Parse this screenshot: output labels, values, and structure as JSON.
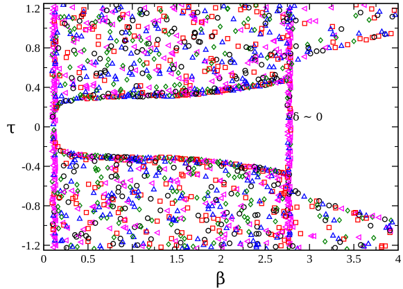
{
  "chart_data": {
    "type": "scatter",
    "title": "",
    "xlabel": "β",
    "ylabel": "τ",
    "xlim": [
      0,
      4
    ],
    "ylim": [
      -1.25,
      1.25
    ],
    "x_ticks": [
      0,
      0.5,
      1,
      1.5,
      2,
      2.5,
      3,
      3.5,
      4
    ],
    "x_tick_labels": [
      "0",
      "0.5",
      "1",
      "1.5",
      "2",
      "2.5",
      "3",
      "3.5",
      "4"
    ],
    "y_ticks": [
      -1.2,
      -0.8,
      -0.4,
      0,
      0.4,
      0.8,
      1.2
    ],
    "y_tick_labels": [
      "-1.2",
      "-0.8",
      "-0.4",
      "0",
      "0.4",
      "0.8",
      "1.2"
    ],
    "grid": false,
    "legend": "none",
    "annotation": {
      "text": "δ ~ 0",
      "x": 2.98,
      "y": 0.1
    },
    "series_style": [
      {
        "marker": "circle-open",
        "color": "#000000"
      },
      {
        "marker": "square-open",
        "color": "#ff0000"
      },
      {
        "marker": "diamond-open",
        "color": "#008000"
      },
      {
        "marker": "triangle-up-open",
        "color": "#0000ff"
      },
      {
        "marker": "triangle-left-open",
        "color": "#ff00ff"
      }
    ],
    "structure": {
      "vertical_bands": [
        {
          "x": 0.115,
          "y_min": -1.22,
          "y_max": -0.03,
          "dominant_color": "#ff00ff"
        },
        {
          "x": 0.115,
          "y_min": 0.03,
          "y_max": 1.22,
          "dominant_color": "#ff00ff"
        },
        {
          "x": 2.77,
          "y_min": -1.22,
          "y_max": 1.22,
          "dominant_color": "#ff00ff"
        }
      ],
      "boundary_curve": {
        "description": "inner edge of scattered region, mirrored for tau<0",
        "points": [
          [
            0.08,
            0.04
          ],
          [
            0.12,
            0.15
          ],
          [
            0.2,
            0.24
          ],
          [
            0.4,
            0.28
          ],
          [
            0.8,
            0.3
          ],
          [
            1.5,
            0.31
          ],
          [
            2.0,
            0.35
          ],
          [
            2.5,
            0.42
          ],
          [
            2.75,
            0.47
          ]
        ]
      },
      "right_region_edge": {
        "description": "lower edge of points for beta>2.77, mirrored",
        "points": [
          [
            2.78,
            0.62
          ],
          [
            3.0,
            0.72
          ],
          [
            3.5,
            0.85
          ],
          [
            3.9,
            0.93
          ]
        ]
      }
    }
  }
}
